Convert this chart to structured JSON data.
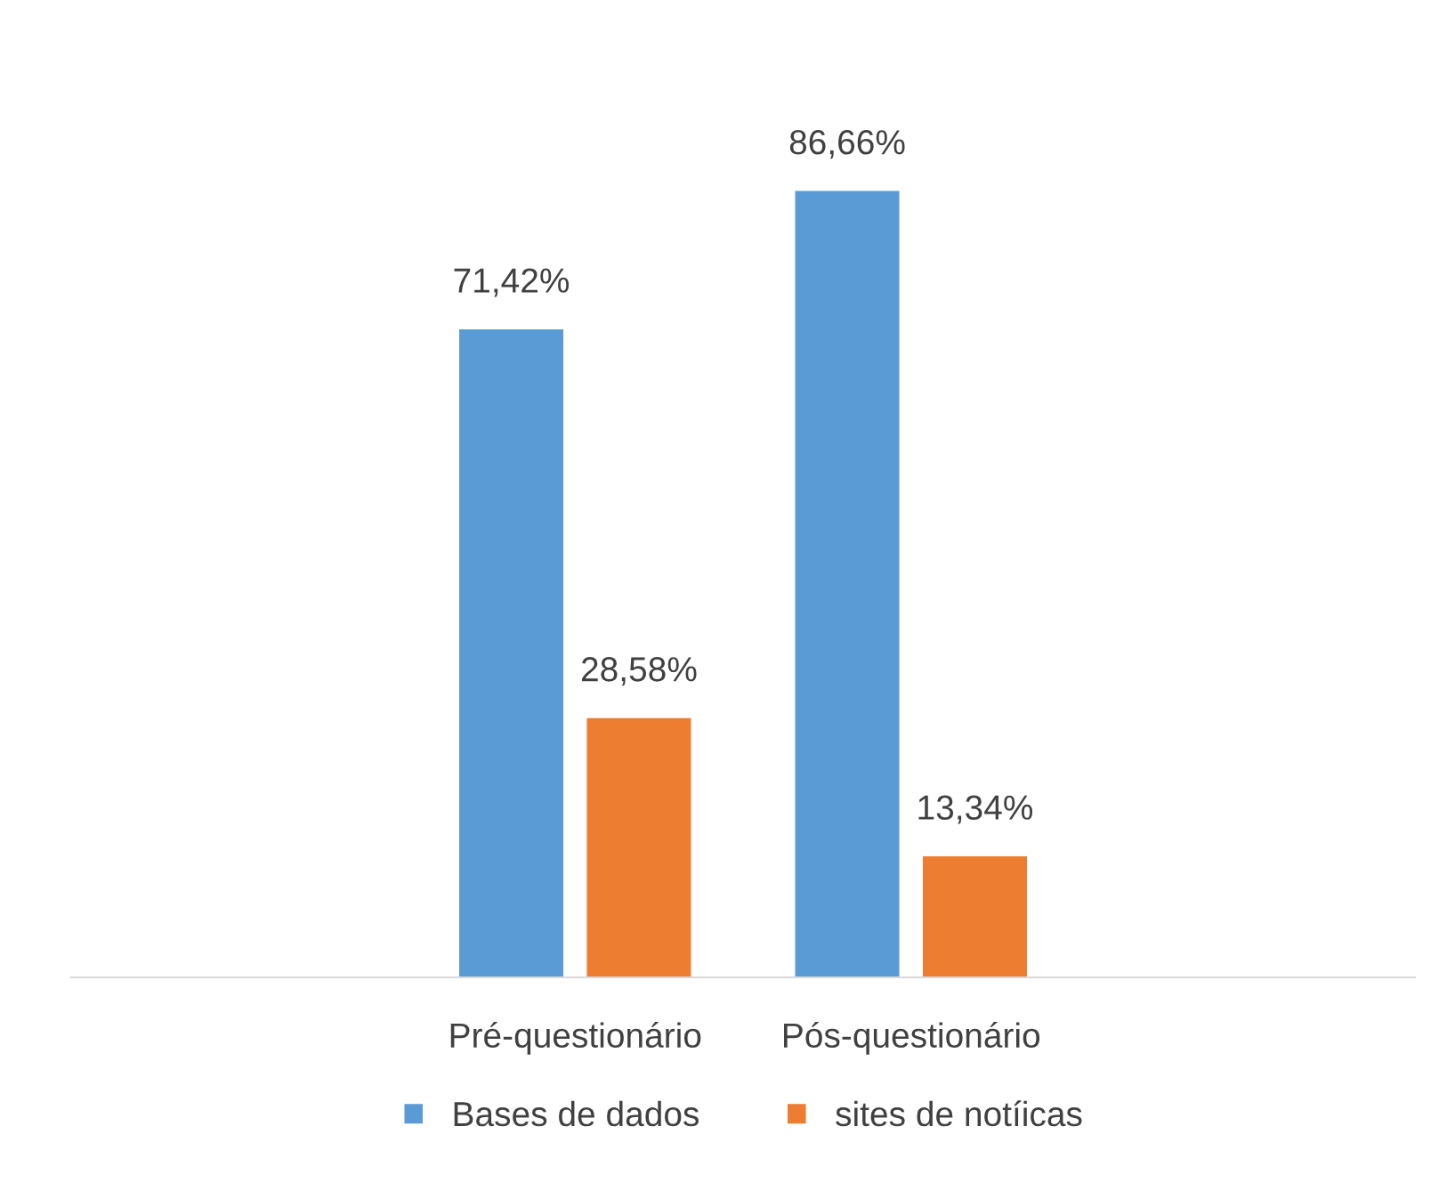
{
  "chart_data": {
    "type": "bar",
    "categories": [
      "Pré-questionário",
      "Pós-questionário"
    ],
    "series": [
      {
        "name": "Bases de dados",
        "color": "#5b9bd5",
        "values": [
          71.42,
          86.66
        ],
        "value_labels": [
          "71,42%",
          "86,66%"
        ]
      },
      {
        "name": "sites de notíicas",
        "color": "#ed7d31",
        "values": [
          28.58,
          13.34
        ],
        "value_labels": [
          "28,58%",
          "13,34%"
        ]
      }
    ],
    "legend": "bottom",
    "grid": false
  }
}
